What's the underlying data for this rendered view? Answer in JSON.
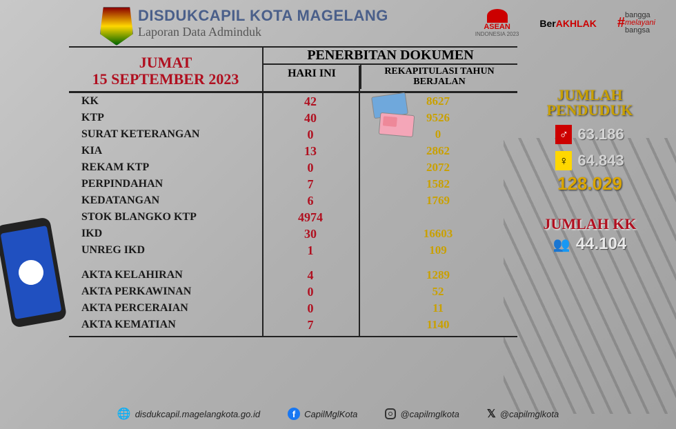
{
  "header": {
    "title": "DISDUKCAPIL KOTA MAGELANG",
    "subtitle": "Laporan Data Adminduk",
    "asean_label": "ASEAN",
    "asean_sub": "INDONESIA 2023",
    "berakhlak_pre": "Ber",
    "berakhlak_mid": "AKHLAK",
    "bangga_1": "bangga",
    "bangga_2": "melayani",
    "bangga_3": "bangsa"
  },
  "date": {
    "day": "JUMAT",
    "full": "15 SEPTEMBER 2023"
  },
  "table": {
    "docs_title": "PENERBITAN DOKUMEN",
    "today_label": "HARI INI",
    "rekap_label1": "REKAPITULASI TAHUN",
    "rekap_label2": "BERJALAN"
  },
  "rows": [
    {
      "label": "KK",
      "today": "42",
      "rekap": "8627"
    },
    {
      "label": "KTP",
      "today": "40",
      "rekap": "9526"
    },
    {
      "label": "SURAT KETERANGAN",
      "today": "0",
      "rekap": "0"
    },
    {
      "label": "KIA",
      "today": "13",
      "rekap": "2862"
    },
    {
      "label": "REKAM KTP",
      "today": "0",
      "rekap": "2072"
    },
    {
      "label": "PERPINDAHAN",
      "today": "7",
      "rekap": "1582"
    },
    {
      "label": "KEDATANGAN",
      "today": "6",
      "rekap": "1769"
    },
    {
      "label": "STOK BLANGKO KTP",
      "today": "4974",
      "rekap": ""
    },
    {
      "label": "IKD",
      "today": "30",
      "rekap": "16603"
    },
    {
      "label": "UNREG IKD",
      "today": "1",
      "rekap": "109"
    }
  ],
  "rows2": [
    {
      "label": "AKTA KELAHIRAN",
      "today": "4",
      "rekap": "1289"
    },
    {
      "label": "AKTA PERKAWINAN",
      "today": "0",
      "rekap": "52"
    },
    {
      "label": "AKTA PERCERAIAN",
      "today": "0",
      "rekap": "11"
    },
    {
      "label": "AKTA KEMATIAN",
      "today": "7",
      "rekap": "1140"
    }
  ],
  "sidebar": {
    "pop_title1": "JUMLAH",
    "pop_title2": "PENDUDUK",
    "male": "63.186",
    "female": "64.843",
    "total": "128.029",
    "kk_title": "JUMLAH KK",
    "kk_val": "44.104"
  },
  "footer": {
    "web": "disdukcapil.magelangkota.go.id",
    "fb": "CapilMglKota",
    "ig": "@capilmglkota",
    "tw": "@capilmglkota"
  }
}
